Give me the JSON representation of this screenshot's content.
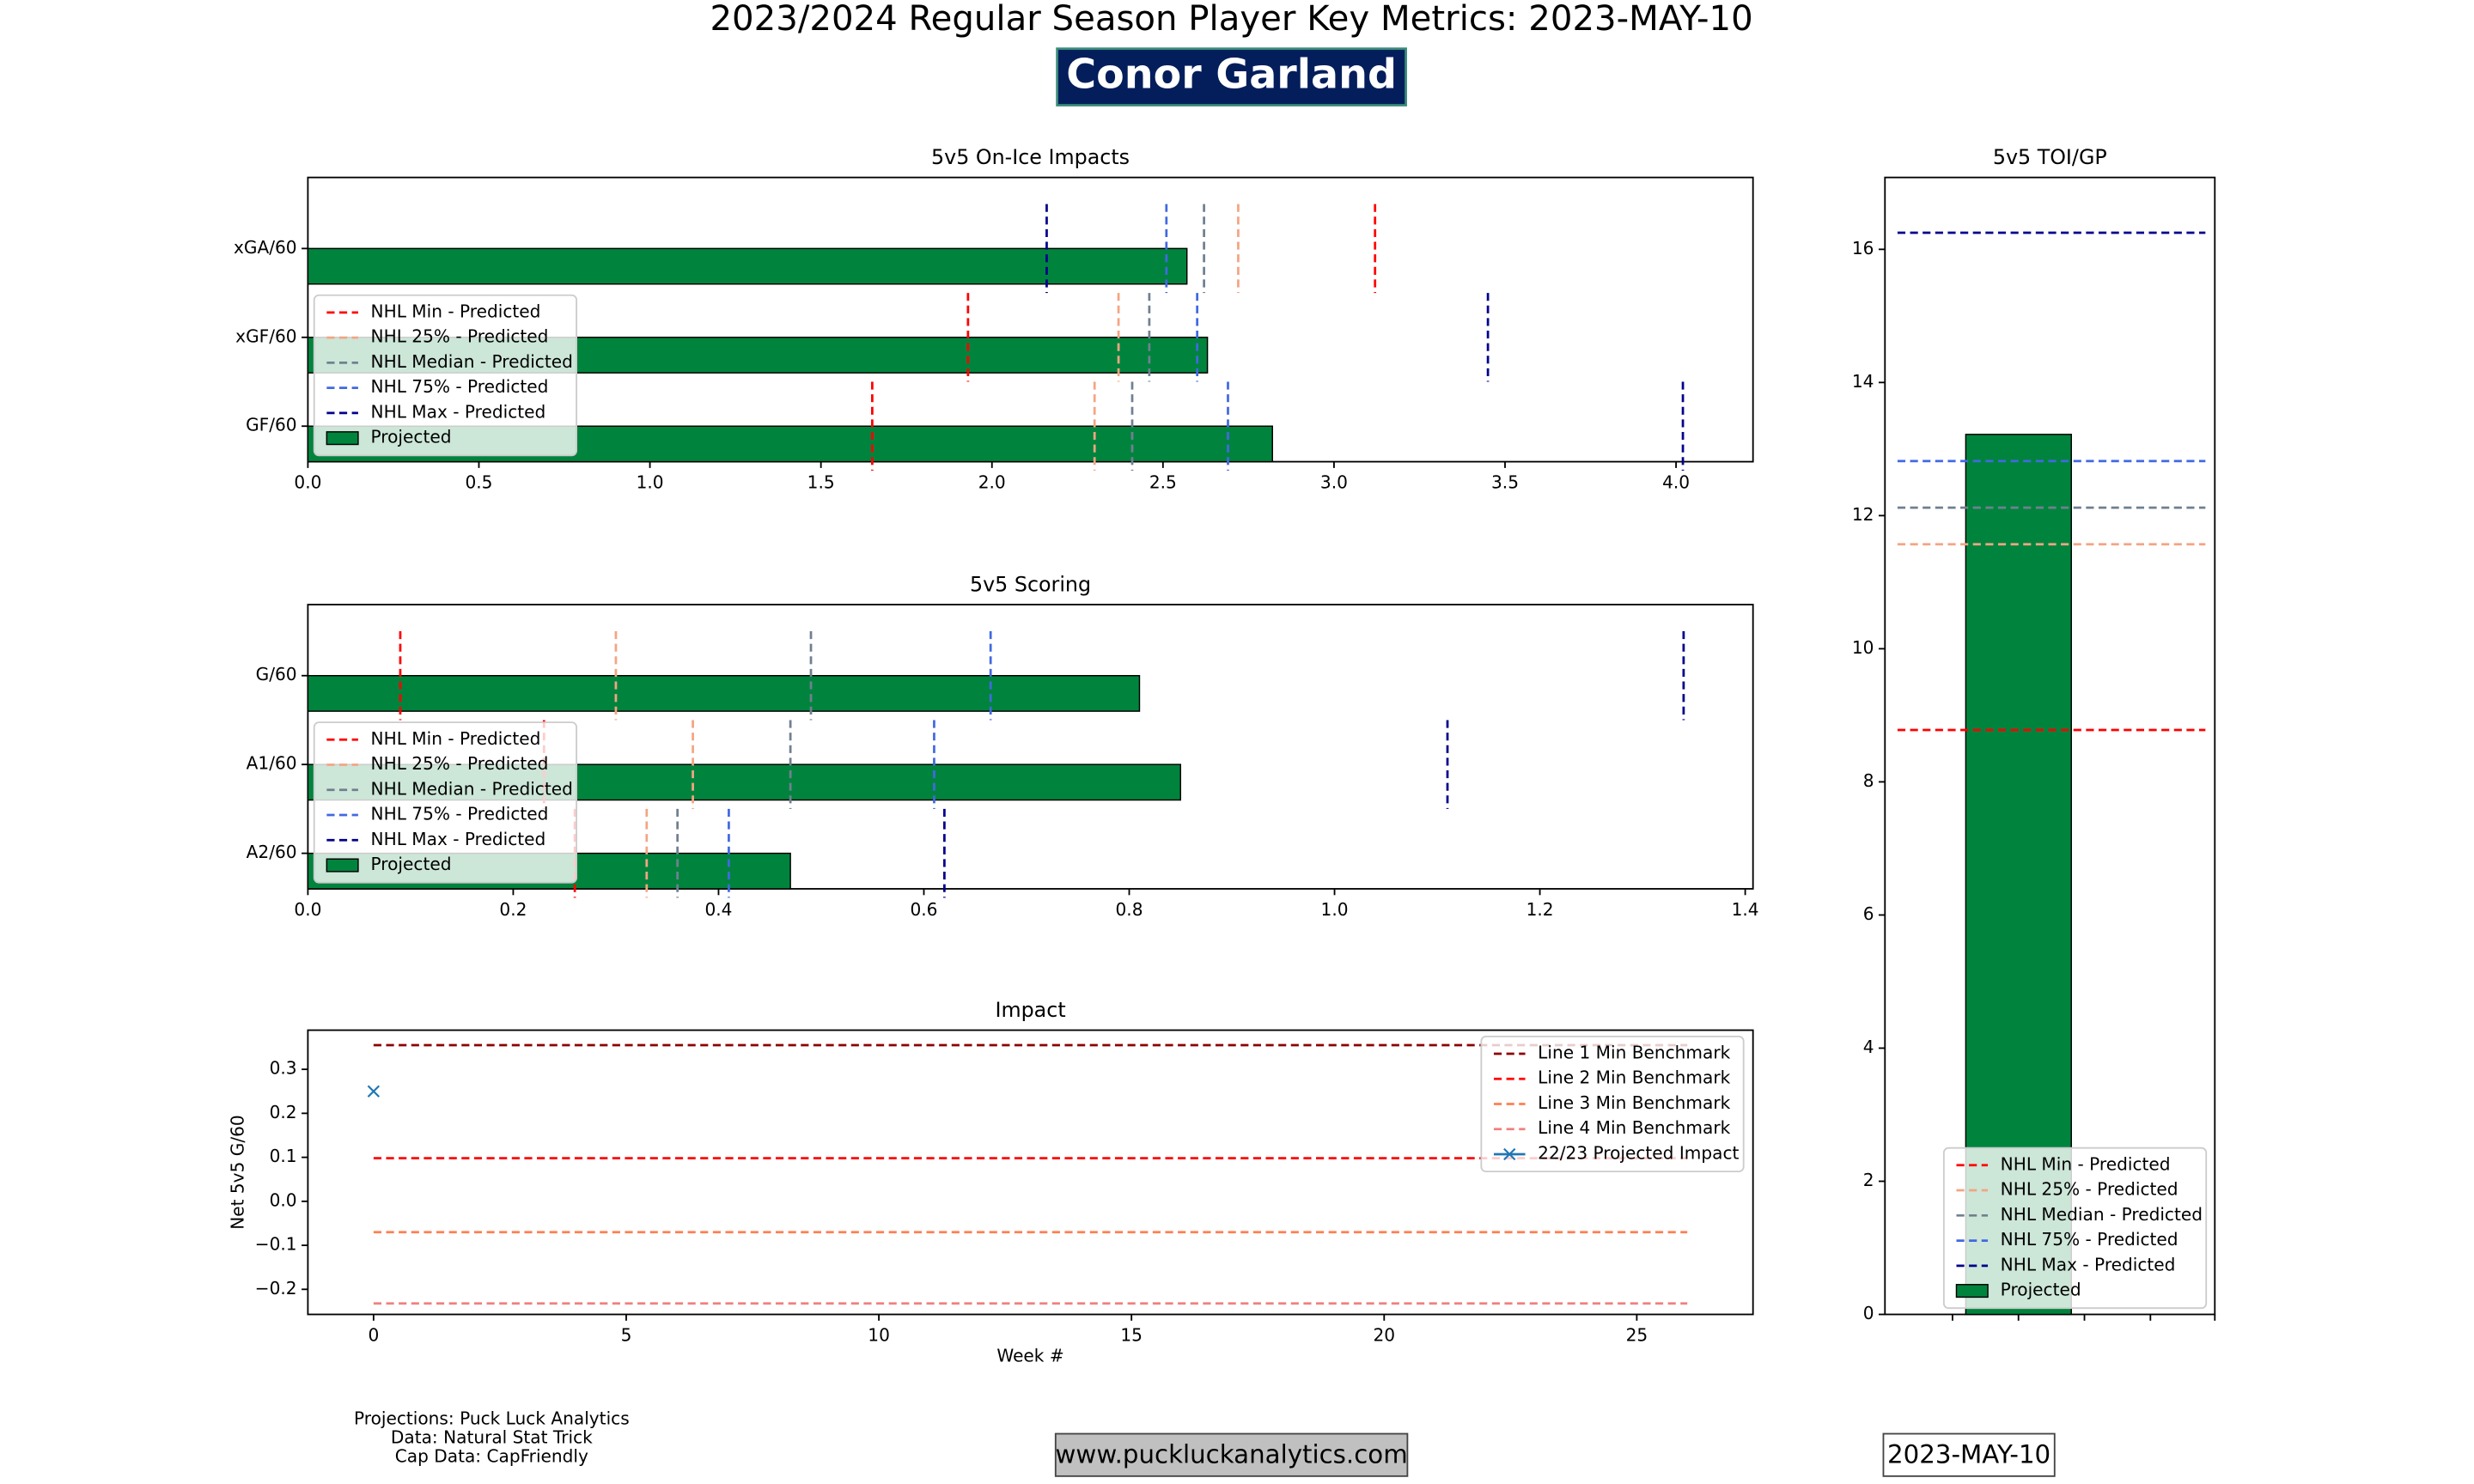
{
  "header": {
    "title": "2023/2024 Regular Season Player Key Metrics: 2023-MAY-10",
    "player": "Conor Garland"
  },
  "chart_data": [
    {
      "type": "bar",
      "orientation": "horizontal",
      "title": "5v5 On-Ice Impacts",
      "categories": [
        "xGA/60",
        "xGF/60",
        "GF/60"
      ],
      "series": [
        {
          "name": "NHL Min - Predicted",
          "color": "#ff0000",
          "style": "dashed",
          "values": [
            3.12,
            1.93,
            1.65
          ]
        },
        {
          "name": "NHL 25% - Predicted",
          "color": "#f4a582",
          "style": "dashed",
          "values": [
            2.72,
            2.37,
            2.3
          ]
        },
        {
          "name": "NHL Median - Predicted",
          "color": "#708090",
          "style": "dashed",
          "values": [
            2.62,
            2.46,
            2.41
          ]
        },
        {
          "name": "NHL 75% - Predicted",
          "color": "#4169e1",
          "style": "dashed",
          "values": [
            2.51,
            2.6,
            2.69
          ]
        },
        {
          "name": "NHL Max - Predicted",
          "color": "#00008b",
          "style": "dashed",
          "values": [
            2.16,
            3.45,
            4.02
          ]
        },
        {
          "name": "Projected",
          "color": "#00843d",
          "style": "bar",
          "values": [
            2.57,
            2.63,
            2.82
          ]
        }
      ],
      "xlim": [
        0,
        4.225
      ],
      "xticks": [
        {
          "value": 0,
          "label": "0.0"
        },
        0.5,
        {
          "value": 1,
          "label": "1.0"
        },
        1.5,
        {
          "value": 2,
          "label": "2.0"
        },
        2.5,
        {
          "value": 3,
          "label": "3.0"
        },
        3.5,
        {
          "value": 4,
          "label": "4.0"
        }
      ],
      "legend": "lower left",
      "grid": false
    },
    {
      "type": "bar",
      "orientation": "horizontal",
      "title": "5v5 Scoring",
      "categories": [
        "G/60",
        "A1/60",
        "A2/60"
      ],
      "series": [
        {
          "name": "NHL Min - Predicted",
          "color": "#ff0000",
          "style": "dashed",
          "values": [
            0.09,
            0.23,
            0.26
          ]
        },
        {
          "name": "NHL 25% - Predicted",
          "color": "#f4a582",
          "style": "dashed",
          "values": [
            0.3,
            0.375,
            0.33
          ]
        },
        {
          "name": "NHL Median - Predicted",
          "color": "#708090",
          "style": "dashed",
          "values": [
            0.49,
            0.47,
            0.36
          ]
        },
        {
          "name": "NHL 75% - Predicted",
          "color": "#4169e1",
          "style": "dashed",
          "values": [
            0.665,
            0.61,
            0.41
          ]
        },
        {
          "name": "NHL Max - Predicted",
          "color": "#00008b",
          "style": "dashed",
          "values": [
            1.34,
            1.11,
            0.62
          ]
        },
        {
          "name": "Projected",
          "color": "#00843d",
          "style": "bar",
          "values": [
            0.81,
            0.85,
            0.47
          ]
        }
      ],
      "xlim": [
        0,
        1.4076
      ],
      "xticks": [
        {
          "value": 0,
          "label": "0.0"
        },
        0.2,
        0.4,
        0.6,
        0.8,
        {
          "value": 1,
          "label": "1.0"
        },
        1.2,
        1.4
      ],
      "legend": "lower left",
      "grid": false
    },
    {
      "type": "line",
      "title": "Impact",
      "xlabel": "Week #",
      "ylabel": "Net 5v5 G/60",
      "series": [
        {
          "name": "Line 1 Min Benchmark",
          "color": "#8b0000",
          "style": "dashed",
          "x": [
            0,
            26
          ],
          "values": [
            0.355,
            0.355
          ]
        },
        {
          "name": "Line 2 Min Benchmark",
          "color": "#ff0000",
          "style": "dashed",
          "x": [
            0,
            26
          ],
          "values": [
            0.098,
            0.098
          ]
        },
        {
          "name": "Line 3 Min Benchmark",
          "color": "#ff7f50",
          "style": "dashed",
          "x": [
            0,
            26
          ],
          "values": [
            -0.07,
            -0.07
          ]
        },
        {
          "name": "Line 4 Min Benchmark",
          "color": "#f08080",
          "style": "dashed",
          "x": [
            0,
            26
          ],
          "values": [
            -0.232,
            -0.232
          ]
        },
        {
          "name": "22/23 Projected Impact",
          "color": "#1f77b4",
          "style": "solid",
          "marker": "x",
          "x": [
            0
          ],
          "values": [
            0.25
          ]
        }
      ],
      "xlim": [
        -1.3,
        27.3
      ],
      "xticks": [
        0,
        5,
        10,
        15,
        20,
        25
      ],
      "ylim": [
        -0.257,
        0.389
      ],
      "yticks": [
        {
          "value": -0.2,
          "label": "−0.2"
        },
        {
          "value": -0.1,
          "label": "−0.1"
        },
        {
          "value": 0,
          "label": "0.0"
        },
        0.1,
        0.2,
        0.3
      ],
      "legend": "upper right",
      "grid": false
    },
    {
      "type": "bar",
      "orientation": "vertical",
      "title": "5v5 TOI/GP",
      "series": [
        {
          "name": "NHL Min - Predicted",
          "color": "#ff0000",
          "style": "dashed",
          "values": [
            8.78
          ]
        },
        {
          "name": "NHL 25% - Predicted",
          "color": "#f4a582",
          "style": "dashed",
          "values": [
            11.57
          ]
        },
        {
          "name": "NHL Median - Predicted",
          "color": "#708090",
          "style": "dashed",
          "values": [
            12.12
          ]
        },
        {
          "name": "NHL 75% - Predicted",
          "color": "#4169e1",
          "style": "dashed",
          "values": [
            12.82
          ]
        },
        {
          "name": "NHL Max - Predicted",
          "color": "#00008b",
          "style": "dashed",
          "values": [
            16.25
          ]
        },
        {
          "name": "Projected",
          "color": "#00843d",
          "style": "bar",
          "values": [
            13.22
          ]
        }
      ],
      "ylim": [
        0,
        17.08
      ],
      "yticks": [
        0,
        2,
        4,
        6,
        8,
        10,
        12,
        14,
        16
      ],
      "legend": "lower center",
      "grid": false
    }
  ],
  "footer": {
    "credits": [
      "Projections: Puck Luck Analytics",
      "Data: Natural Stat Trick",
      "Cap Data: CapFriendly"
    ],
    "website": "www.puckluckanalytics.com",
    "date": "2023-MAY-10"
  }
}
